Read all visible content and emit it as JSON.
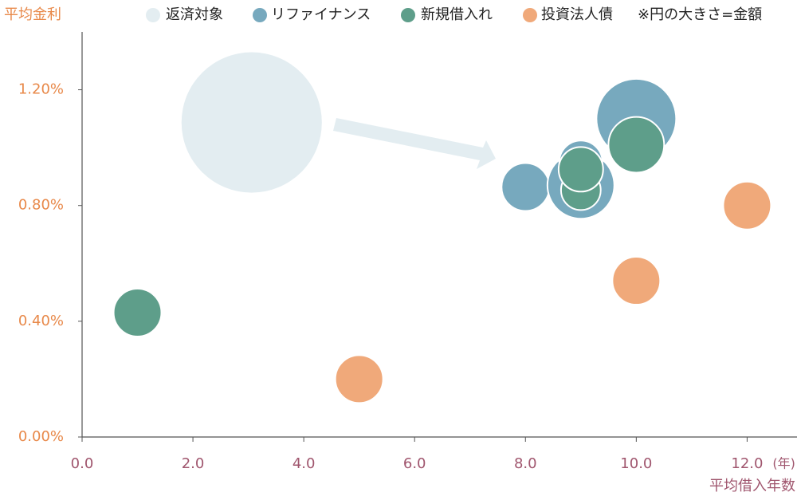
{
  "chart_data": {
    "type": "bubble",
    "y_label": "平均金利",
    "x_label": "平均借入年数",
    "x_unit": "(年)",
    "note": "※円の大きさ=金額",
    "xlim": [
      0,
      12.9
    ],
    "ylim": [
      0,
      1.4
    ],
    "xticks": [
      {
        "value": 0,
        "label": "0.0"
      },
      {
        "value": 2,
        "label": "2.0"
      },
      {
        "value": 4,
        "label": "4.0"
      },
      {
        "value": 6,
        "label": "6.0"
      },
      {
        "value": 8,
        "label": "8.0"
      },
      {
        "value": 10,
        "label": "10.0"
      },
      {
        "value": 12,
        "label": "12.0"
      }
    ],
    "yticks": [
      {
        "value": 0,
        "label": "0.00%"
      },
      {
        "value": 0.4,
        "label": "0.40%"
      },
      {
        "value": 0.8,
        "label": "0.80%"
      },
      {
        "value": 1.2,
        "label": "1.20%"
      }
    ],
    "series": [
      {
        "name": "返済対象",
        "color": "#e3edf1",
        "x": [
          3.06
        ],
        "values": [
          1.087
        ],
        "sizes": [
          775
        ]
      },
      {
        "name": "リファイナンス",
        "color": "#77a9be",
        "x": [
          8.0,
          10.0,
          9.0,
          9.0
        ],
        "values": [
          0.864,
          1.1,
          0.87,
          0.95
        ],
        "sizes": [
          90,
          250,
          176,
          73
        ]
      },
      {
        "name": "新規借入れ",
        "color": "#5e9e8a",
        "x": [
          1.0,
          10.0,
          9.0,
          9.0
        ],
        "values": [
          0.43,
          1.01,
          0.853,
          0.925
        ],
        "sizes": [
          90,
          122,
          62,
          78
        ]
      },
      {
        "name": "投資法人債",
        "color": "#f0a97a",
        "x": [
          5.0,
          10.0,
          12.0
        ],
        "values": [
          0.2,
          0.54,
          0.8
        ],
        "sizes": [
          90,
          90,
          90
        ]
      }
    ]
  }
}
